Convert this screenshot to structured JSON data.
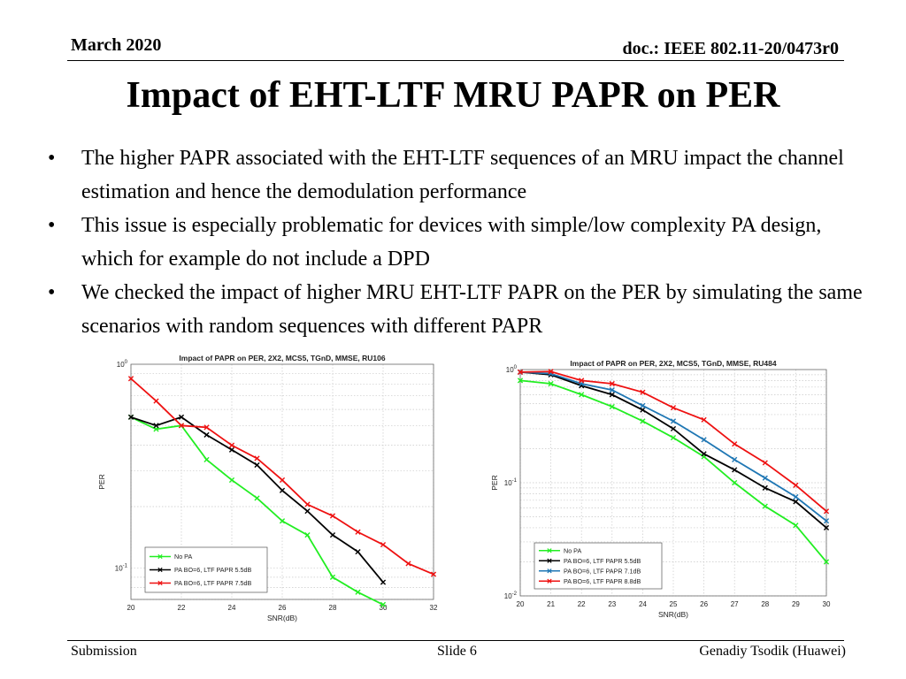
{
  "header": {
    "date": "March 2020",
    "doc": "doc.: IEEE 802.11-20/0473r0"
  },
  "title": "Impact of EHT-LTF MRU PAPR on PER",
  "bullets": [
    "The higher PAPR associated with the EHT-LTF sequences of an MRU impact the channel estimation and hence the demodulation performance",
    "This issue is especially problematic for devices with simple/low complexity PA design, which for example do not include a DPD",
    "We checked the impact of higher MRU EHT-LTF PAPR on the PER by simulating the same scenarios with random sequences with different PAPR"
  ],
  "bullet_marker": "•",
  "footer": {
    "left": "Submission",
    "center": "Slide 6",
    "right": "Genadiy Tsodik (Huawei)"
  },
  "chart_data": [
    {
      "type": "line",
      "title": "Impact of PAPR on PER, 2X2, MCS5, TGnD, MMSE, RU106",
      "xlabel": "SNR(dB)",
      "ylabel": "PER",
      "y_scale": "log",
      "xlim": [
        20,
        32
      ],
      "ylim": [
        0.07,
        1
      ],
      "xticks": [
        "20",
        "22",
        "24",
        "26",
        "28",
        "30",
        "32"
      ],
      "yticks": [
        {
          "base": "10",
          "exp": "0",
          "value": 1
        },
        {
          "base": "10",
          "exp": "-1",
          "value": 0.1
        }
      ],
      "grid": "dotted",
      "legend_position": "bottom-left",
      "series": [
        {
          "name": "No PA",
          "color": "#22ee22",
          "x": [
            20,
            21,
            22,
            23,
            24,
            25,
            26,
            27,
            28,
            29,
            30
          ],
          "y": [
            0.55,
            0.48,
            0.5,
            0.34,
            0.27,
            0.22,
            0.17,
            0.145,
            0.09,
            0.076,
            0.066
          ]
        },
        {
          "name": "PA BO=6, LTF PAPR 5.5dB",
          "color": "#000000",
          "x": [
            20,
            21,
            22,
            23,
            24,
            25,
            26,
            27,
            28,
            29,
            30
          ],
          "y": [
            0.55,
            0.5,
            0.55,
            0.45,
            0.38,
            0.32,
            0.24,
            0.19,
            0.145,
            0.12,
            0.085
          ]
        },
        {
          "name": "PA BO=6, LTF PAPR 7.5dB",
          "color": "#ee1111",
          "x": [
            20,
            21,
            22,
            23,
            24,
            25,
            26,
            27,
            28,
            29,
            30,
            31,
            32
          ],
          "y": [
            0.85,
            0.66,
            0.5,
            0.49,
            0.4,
            0.345,
            0.27,
            0.205,
            0.18,
            0.15,
            0.13,
            0.105,
            0.093
          ]
        }
      ]
    },
    {
      "type": "line",
      "title": "Impact of PAPR on PER, 2X2, MCS5, TGnD, MMSE, RU484",
      "xlabel": "SNR(dB)",
      "ylabel": "PER",
      "y_scale": "log",
      "xlim": [
        20,
        30
      ],
      "ylim": [
        0.01,
        1
      ],
      "xticks": [
        "20",
        "21",
        "22",
        "23",
        "24",
        "25",
        "26",
        "27",
        "28",
        "29",
        "30"
      ],
      "yticks": [
        {
          "base": "10",
          "exp": "0",
          "value": 1
        },
        {
          "base": "10",
          "exp": "-1",
          "value": 0.1
        },
        {
          "base": "10",
          "exp": "-2",
          "value": 0.01
        }
      ],
      "grid": "dotted",
      "legend_position": "bottom-left",
      "series": [
        {
          "name": "No PA",
          "color": "#22ee22",
          "x": [
            20,
            21,
            22,
            23,
            24,
            25,
            26,
            27,
            28,
            29,
            30
          ],
          "y": [
            0.8,
            0.75,
            0.6,
            0.47,
            0.35,
            0.25,
            0.17,
            0.1,
            0.062,
            0.042,
            0.02
          ]
        },
        {
          "name": "PA BO=6, LTF PAPR 5.5dB",
          "color": "#000000",
          "x": [
            20,
            21,
            22,
            23,
            24,
            25,
            26,
            27,
            28,
            29,
            30
          ],
          "y": [
            0.95,
            0.9,
            0.72,
            0.6,
            0.44,
            0.3,
            0.18,
            0.13,
            0.09,
            0.068,
            0.04
          ]
        },
        {
          "name": "PA BO=6, LTF PAPR 7.1dB",
          "color": "#1f77b4",
          "x": [
            20,
            21,
            22,
            23,
            24,
            25,
            26,
            27,
            28,
            29,
            30
          ],
          "y": [
            0.95,
            0.92,
            0.75,
            0.66,
            0.48,
            0.35,
            0.24,
            0.16,
            0.11,
            0.075,
            0.046
          ]
        },
        {
          "name": "PA BO=6, LTF PAPR 8.8dB",
          "color": "#ee1111",
          "x": [
            20,
            21,
            22,
            23,
            24,
            25,
            26,
            27,
            28,
            29,
            30
          ],
          "y": [
            0.95,
            0.96,
            0.8,
            0.75,
            0.63,
            0.46,
            0.36,
            0.22,
            0.15,
            0.095,
            0.056
          ]
        }
      ]
    }
  ]
}
